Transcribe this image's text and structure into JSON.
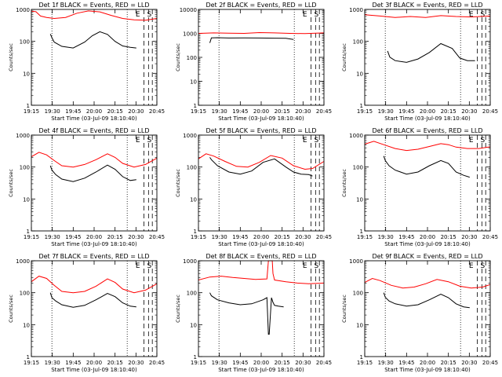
{
  "chart_data": [
    {
      "type": "line",
      "title": "Det 1f BLACK = Events, RED = LLD",
      "ylabel": "Counts/sec",
      "xlabel": "Start Time (03-Jul-09 18:10:40)",
      "yscale": "log",
      "ylim": [
        1,
        1000
      ],
      "xlim_minutes": [
        0,
        165
      ],
      "xticks": [
        "19:15",
        "19:30",
        "19:45",
        "20:00",
        "20:15",
        "20:30",
        "20:45"
      ],
      "yticks": [
        "1",
        "10",
        "100",
        "1000"
      ],
      "markers": [
        "E",
        "S"
      ],
      "series": [
        {
          "color": "#ff0000",
          "x": [
            0,
            6,
            12,
            20,
            30,
            45,
            60,
            75,
            90,
            105,
            120,
            135,
            150,
            165
          ],
          "values": [
            880,
            850,
            620,
            560,
            520,
            560,
            760,
            900,
            840,
            650,
            520,
            470,
            460,
            520
          ]
        },
        {
          "color": "#000000",
          "x": [
            25,
            27,
            30,
            40,
            55,
            70,
            80,
            90,
            100,
            110,
            120,
            130,
            138
          ],
          "values": [
            170,
            130,
            95,
            70,
            62,
            95,
            150,
            200,
            165,
            100,
            72,
            65,
            62
          ]
        }
      ]
    },
    {
      "type": "line",
      "title": "Det 2f BLACK = Events, RED = LLD",
      "ylabel": "Counts/sec",
      "xlabel": "Start Time (03-Jul-09 18:10:40)",
      "yscale": "log",
      "ylim": [
        1,
        10000
      ],
      "xlim_minutes": [
        0,
        165
      ],
      "xticks": [
        "19:15",
        "19:30",
        "19:45",
        "20:00",
        "20:15",
        "20:30",
        "20:45"
      ],
      "yticks": [
        "1",
        "10",
        "100",
        "1000",
        "10000"
      ],
      "markers": [
        "E",
        "S"
      ],
      "series": [
        {
          "color": "#ff0000",
          "x": [
            0,
            20,
            40,
            60,
            80,
            100,
            120,
            140,
            165
          ],
          "values": [
            1000,
            1050,
            1020,
            1000,
            1080,
            1050,
            1000,
            980,
            1050
          ]
        },
        {
          "color": "#000000",
          "x": [
            15,
            17,
            25,
            40,
            60,
            80,
            100,
            115,
            125
          ],
          "values": [
            400,
            650,
            660,
            640,
            650,
            640,
            630,
            620,
            560
          ]
        }
      ]
    },
    {
      "type": "line",
      "title": "Det 3f BLACK = Events, RED = LLD",
      "ylabel": "Counts/sec",
      "xlabel": "Start Time (03-Jul-09 18:10:40)",
      "yscale": "log",
      "ylim": [
        1,
        1000
      ],
      "xlim_minutes": [
        0,
        165
      ],
      "xticks": [
        "19:15",
        "19:30",
        "19:45",
        "20:00",
        "20:15",
        "20:30",
        "20:45"
      ],
      "yticks": [
        "1",
        "10",
        "100",
        "1000"
      ],
      "markers": [
        "E",
        "S"
      ],
      "series": [
        {
          "color": "#ff0000",
          "x": [
            0,
            20,
            40,
            60,
            80,
            100,
            120,
            140,
            165
          ],
          "values": [
            680,
            620,
            560,
            600,
            560,
            640,
            600,
            580,
            620
          ]
        },
        {
          "color": "#000000",
          "x": [
            30,
            33,
            40,
            55,
            70,
            85,
            100,
            115,
            125,
            135,
            145
          ],
          "values": [
            50,
            32,
            25,
            22,
            28,
            45,
            85,
            60,
            30,
            25,
            25
          ]
        }
      ]
    },
    {
      "type": "line",
      "title": "Det 4f BLACK = Events, RED = LLD",
      "ylabel": "Counts/sec",
      "xlabel": "Start Time (03-Jul-09 18:10:40)",
      "yscale": "log",
      "ylim": [
        1,
        1000
      ],
      "xlim_minutes": [
        0,
        165
      ],
      "xticks": [
        "19:15",
        "19:30",
        "19:45",
        "20:00",
        "20:15",
        "20:30",
        "20:45"
      ],
      "yticks": [
        "1",
        "10",
        "100",
        "1000"
      ],
      "markers": [
        "E",
        "S"
      ],
      "series": [
        {
          "color": "#ff0000",
          "x": [
            0,
            10,
            20,
            30,
            40,
            55,
            70,
            85,
            100,
            110,
            120,
            135,
            150,
            165
          ],
          "values": [
            210,
            290,
            240,
            160,
            110,
            100,
            120,
            170,
            260,
            200,
            130,
            100,
            120,
            190
          ]
        },
        {
          "color": "#000000",
          "x": [
            25,
            27,
            32,
            40,
            55,
            70,
            85,
            100,
            110,
            120,
            130,
            138
          ],
          "values": [
            110,
            80,
            58,
            42,
            35,
            45,
            70,
            115,
            85,
            50,
            38,
            40
          ]
        }
      ]
    },
    {
      "type": "line",
      "title": "Det 5f BLACK = Events, RED = LLD",
      "ylabel": "Counts/sec",
      "xlabel": "Start Time (03-Jul-09 18:10:40)",
      "yscale": "log",
      "ylim": [
        1,
        1000
      ],
      "xlim_minutes": [
        0,
        165
      ],
      "xticks": [
        "19:15",
        "19:30",
        "19:45",
        "20:00",
        "20:15",
        "20:30",
        "20:45"
      ],
      "yticks": [
        "1",
        "10",
        "100",
        "1000"
      ],
      "markers": [
        "E",
        "S"
      ],
      "series": [
        {
          "color": "#ff0000",
          "x": [
            0,
            10,
            20,
            35,
            50,
            65,
            80,
            95,
            110,
            125,
            140,
            150,
            165
          ],
          "values": [
            180,
            260,
            220,
            150,
            105,
            100,
            140,
            230,
            190,
            110,
            85,
            90,
            150
          ]
        },
        {
          "color": "#000000",
          "x": [
            15,
            17,
            25,
            40,
            55,
            70,
            85,
            100,
            115,
            125,
            135,
            145,
            150
          ],
          "values": [
            200,
            170,
            110,
            70,
            60,
            75,
            140,
            180,
            100,
            70,
            60,
            58,
            52
          ]
        }
      ]
    },
    {
      "type": "line",
      "title": "Det 6f BLACK = Events, RED = LLD",
      "ylabel": "Counts/sec",
      "xlabel": "Start Time (03-Jul-09 18:10:40)",
      "yscale": "log",
      "ylim": [
        1,
        1000
      ],
      "xlim_minutes": [
        0,
        165
      ],
      "xticks": [
        "19:15",
        "19:30",
        "19:45",
        "20:00",
        "20:15",
        "20:30",
        "20:45"
      ],
      "yticks": [
        "1",
        "10",
        "100",
        "1000"
      ],
      "markers": [
        "E",
        "S"
      ],
      "series": [
        {
          "color": "#ff0000",
          "x": [
            0,
            12,
            25,
            40,
            55,
            70,
            85,
            100,
            110,
            120,
            135,
            150,
            165
          ],
          "values": [
            520,
            640,
            500,
            380,
            330,
            360,
            440,
            540,
            500,
            420,
            380,
            380,
            430
          ]
        },
        {
          "color": "#000000",
          "x": [
            25,
            27,
            32,
            40,
            55,
            70,
            85,
            100,
            110,
            120,
            130,
            138
          ],
          "values": [
            220,
            160,
            110,
            80,
            60,
            70,
            110,
            160,
            130,
            70,
            55,
            48
          ]
        }
      ]
    },
    {
      "type": "line",
      "title": "Det 7f BLACK = Events, RED = LLD",
      "ylabel": "Counts/sec",
      "xlabel": "Start Time (03-Jul-09 18:10:40)",
      "yscale": "log",
      "ylim": [
        1,
        1000
      ],
      "xlim_minutes": [
        0,
        165
      ],
      "xticks": [
        "19:15",
        "19:30",
        "19:45",
        "20:00",
        "20:15",
        "20:30",
        "20:45"
      ],
      "yticks": [
        "1",
        "10",
        "100",
        "1000"
      ],
      "markers": [
        "E",
        "S"
      ],
      "series": [
        {
          "color": "#ff0000",
          "x": [
            0,
            10,
            20,
            30,
            40,
            55,
            70,
            85,
            100,
            110,
            120,
            135,
            150,
            165
          ],
          "values": [
            220,
            330,
            280,
            170,
            110,
            100,
            110,
            160,
            270,
            210,
            130,
            100,
            120,
            190
          ]
        },
        {
          "color": "#000000",
          "x": [
            25,
            27,
            32,
            40,
            55,
            70,
            85,
            100,
            110,
            120,
            130,
            138
          ],
          "values": [
            100,
            70,
            55,
            42,
            35,
            40,
            60,
            95,
            75,
            48,
            38,
            36
          ]
        }
      ]
    },
    {
      "type": "line",
      "title": "Det 8f BLACK = Events, RED = LLD",
      "ylabel": "Counts/sec",
      "xlabel": "Start Time (03-Jul-09 18:10:40)",
      "yscale": "log",
      "ylim": [
        1,
        1000
      ],
      "xlim_minutes": [
        0,
        165
      ],
      "xticks": [
        "19:15",
        "19:30",
        "19:45",
        "20:00",
        "20:15",
        "20:30",
        "20:45"
      ],
      "yticks": [
        "1",
        "10",
        "100",
        "1000"
      ],
      "markers": [
        "E",
        "S"
      ],
      "series": [
        {
          "color": "#ff0000",
          "x": [
            0,
            15,
            30,
            45,
            60,
            75,
            90,
            92,
            93,
            97,
            98,
            100,
            115,
            130,
            145,
            165
          ],
          "values": [
            250,
            310,
            330,
            300,
            280,
            260,
            270,
            1000,
            1000,
            1000,
            400,
            250,
            220,
            200,
            190,
            200
          ]
        },
        {
          "color": "#000000",
          "x": [
            15,
            17,
            25,
            40,
            55,
            70,
            85,
            90,
            92,
            93,
            96,
            98,
            100,
            105,
            112
          ],
          "values": [
            100,
            80,
            60,
            48,
            42,
            45,
            60,
            70,
            5,
            5,
            70,
            50,
            40,
            38,
            36
          ]
        }
      ]
    },
    {
      "type": "line",
      "title": "Det 9f BLACK = Events, RED = LLD",
      "ylabel": "Counts/sec",
      "xlabel": "Start Time (03-Jul-09 18:10:40)",
      "yscale": "log",
      "ylim": [
        1,
        1000
      ],
      "xlim_minutes": [
        0,
        165
      ],
      "xticks": [
        "19:15",
        "19:30",
        "19:45",
        "20:00",
        "20:15",
        "20:30",
        "20:45"
      ],
      "yticks": [
        "1",
        "10",
        "100",
        "1000"
      ],
      "markers": [
        "E",
        "S"
      ],
      "series": [
        {
          "color": "#ff0000",
          "x": [
            0,
            10,
            20,
            35,
            50,
            65,
            80,
            95,
            110,
            125,
            140,
            155,
            165
          ],
          "values": [
            210,
            280,
            240,
            170,
            140,
            150,
            190,
            260,
            220,
            160,
            140,
            150,
            180
          ]
        },
        {
          "color": "#000000",
          "x": [
            25,
            27,
            32,
            40,
            55,
            70,
            85,
            100,
            110,
            120,
            130,
            138
          ],
          "values": [
            100,
            72,
            55,
            45,
            38,
            42,
            60,
            90,
            70,
            45,
            36,
            34
          ]
        }
      ]
    }
  ]
}
